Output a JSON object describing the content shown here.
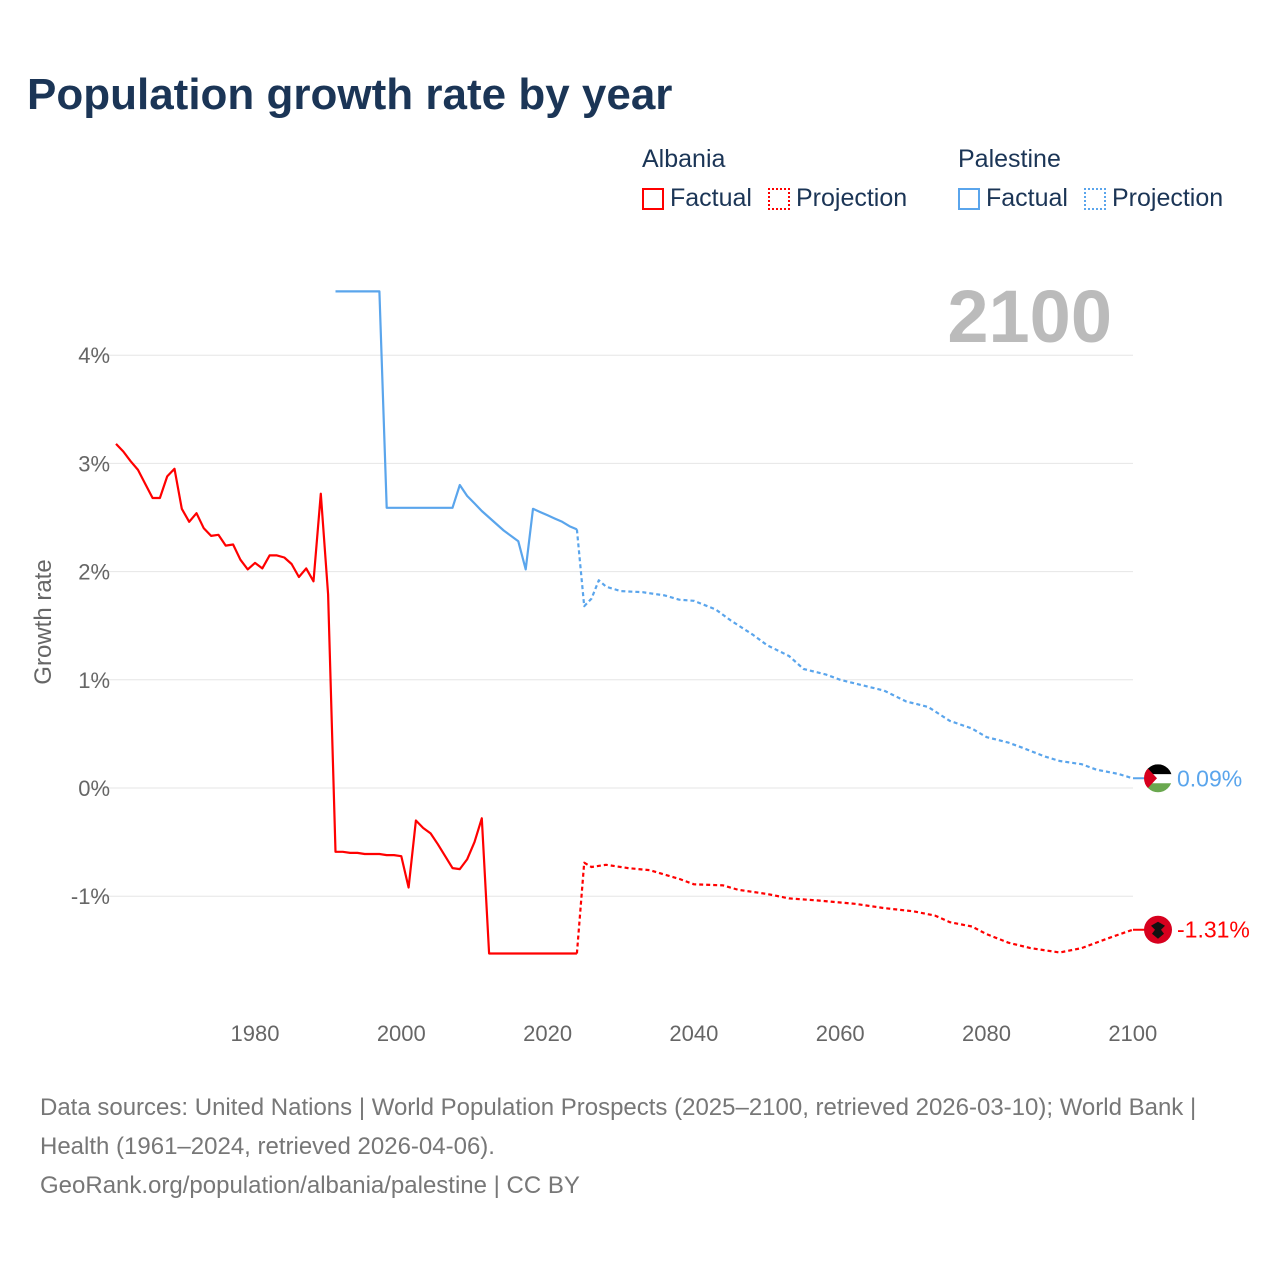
{
  "title": "Population growth rate by year",
  "legend": [
    {
      "country": "Albania",
      "factual": "Factual",
      "projection": "Projection",
      "color": "#ff0000"
    },
    {
      "country": "Palestine",
      "factual": "Factual",
      "projection": "Projection",
      "color": "#5aa5ec"
    }
  ],
  "year_display": "2100",
  "footer": {
    "sources": "Data sources: United Nations | World Population Prospects (2025–2100, retrieved 2026-03-10); World Bank | Health (1961–2024, retrieved 2026-04-06).",
    "link": "GeoRank.org/population/albania/palestine | CC BY"
  },
  "chart_data": {
    "type": "line",
    "title": "Population growth rate by year",
    "xlabel": "",
    "ylabel": "Growth rate",
    "xlim": [
      1961,
      2100
    ],
    "ylim": [
      -1.9,
      4.6
    ],
    "x_ticks": [
      {
        "v": 1980,
        "label": "1980"
      },
      {
        "v": 2000,
        "label": "2000"
      },
      {
        "v": 2020,
        "label": "2020"
      },
      {
        "v": 2040,
        "label": "2040"
      },
      {
        "v": 2060,
        "label": "2060"
      },
      {
        "v": 2080,
        "label": "2080"
      },
      {
        "v": 2100,
        "label": "2100"
      }
    ],
    "y_ticks": [
      {
        "v": -1,
        "label": "-1%"
      },
      {
        "v": 0,
        "label": "0%"
      },
      {
        "v": 1,
        "label": "1%"
      },
      {
        "v": 2,
        "label": "2%"
      },
      {
        "v": 3,
        "label": "3%"
      },
      {
        "v": 4,
        "label": "4%"
      }
    ],
    "grid": true,
    "legend_position": "top-right",
    "series": [
      {
        "name": "Albania Factual",
        "color": "#ff0000",
        "dashed": false,
        "points": [
          [
            1961,
            3.18
          ],
          [
            1962,
            3.11
          ],
          [
            1963,
            3.02
          ],
          [
            1964,
            2.94
          ],
          [
            1965,
            2.81
          ],
          [
            1966,
            2.68
          ],
          [
            1967,
            2.68
          ],
          [
            1968,
            2.88
          ],
          [
            1969,
            2.95
          ],
          [
            1970,
            2.58
          ],
          [
            1971,
            2.46
          ],
          [
            1972,
            2.54
          ],
          [
            1973,
            2.4
          ],
          [
            1974,
            2.33
          ],
          [
            1975,
            2.34
          ],
          [
            1976,
            2.24
          ],
          [
            1977,
            2.25
          ],
          [
            1978,
            2.11
          ],
          [
            1979,
            2.02
          ],
          [
            1980,
            2.08
          ],
          [
            1981,
            2.03
          ],
          [
            1982,
            2.15
          ],
          [
            1983,
            2.15
          ],
          [
            1984,
            2.13
          ],
          [
            1985,
            2.07
          ],
          [
            1986,
            1.95
          ],
          [
            1987,
            2.03
          ],
          [
            1988,
            1.91
          ],
          [
            1989,
            2.72
          ],
          [
            1990,
            1.79
          ],
          [
            1991,
            -0.59
          ],
          [
            1992,
            -0.59
          ],
          [
            1993,
            -0.6
          ],
          [
            1994,
            -0.6
          ],
          [
            1995,
            -0.61
          ],
          [
            1996,
            -0.61
          ],
          [
            1997,
            -0.61
          ],
          [
            1998,
            -0.62
          ],
          [
            1999,
            -0.62
          ],
          [
            2000,
            -0.63
          ],
          [
            2001,
            -0.92
          ],
          [
            2002,
            -0.3
          ],
          [
            2003,
            -0.37
          ],
          [
            2004,
            -0.42
          ],
          [
            2005,
            -0.52
          ],
          [
            2006,
            -0.63
          ],
          [
            2007,
            -0.74
          ],
          [
            2008,
            -0.75
          ],
          [
            2009,
            -0.66
          ],
          [
            2010,
            -0.5
          ],
          [
            2011,
            -0.28
          ],
          [
            2012,
            -1.53
          ],
          [
            2024,
            -1.53
          ]
        ]
      },
      {
        "name": "Albania Projection",
        "color": "#ff0000",
        "dashed": true,
        "points": [
          [
            2024,
            -1.53
          ],
          [
            2025,
            -0.69
          ],
          [
            2026,
            -0.73
          ],
          [
            2028,
            -0.71
          ],
          [
            2031,
            -0.74
          ],
          [
            2034,
            -0.76
          ],
          [
            2036,
            -0.8
          ],
          [
            2038,
            -0.84
          ],
          [
            2040,
            -0.89
          ],
          [
            2044,
            -0.9
          ],
          [
            2046,
            -0.94
          ],
          [
            2050,
            -0.98
          ],
          [
            2053,
            -1.02
          ],
          [
            2057,
            -1.04
          ],
          [
            2062,
            -1.07
          ],
          [
            2066,
            -1.11
          ],
          [
            2070,
            -1.14
          ],
          [
            2073,
            -1.18
          ],
          [
            2075,
            -1.24
          ],
          [
            2078,
            -1.28
          ],
          [
            2080,
            -1.35
          ],
          [
            2083,
            -1.43
          ],
          [
            2086,
            -1.48
          ],
          [
            2090,
            -1.52
          ],
          [
            2093,
            -1.48
          ],
          [
            2097,
            -1.38
          ],
          [
            2100,
            -1.31
          ]
        ]
      },
      {
        "name": "Palestine Factual",
        "color": "#5aa5ec",
        "dashed": false,
        "points": [
          [
            1991,
            4.59
          ],
          [
            1997,
            4.59
          ],
          [
            1998,
            2.59
          ],
          [
            2007,
            2.59
          ],
          [
            2008,
            2.8
          ],
          [
            2009,
            2.7
          ],
          [
            2010,
            2.63
          ],
          [
            2011,
            2.56
          ],
          [
            2012,
            2.5
          ],
          [
            2013,
            2.44
          ],
          [
            2014,
            2.38
          ],
          [
            2015,
            2.33
          ],
          [
            2016,
            2.28
          ],
          [
            2017,
            2.02
          ],
          [
            2018,
            2.58
          ],
          [
            2019,
            2.55
          ],
          [
            2020,
            2.52
          ],
          [
            2021,
            2.49
          ],
          [
            2022,
            2.46
          ],
          [
            2023,
            2.42
          ],
          [
            2024,
            2.39
          ]
        ]
      },
      {
        "name": "Palestine Projection",
        "color": "#5aa5ec",
        "dashed": true,
        "points": [
          [
            2024,
            2.39
          ],
          [
            2025,
            1.68
          ],
          [
            2026,
            1.75
          ],
          [
            2027,
            1.92
          ],
          [
            2028,
            1.86
          ],
          [
            2030,
            1.82
          ],
          [
            2033,
            1.81
          ],
          [
            2036,
            1.78
          ],
          [
            2038,
            1.74
          ],
          [
            2040,
            1.73
          ],
          [
            2043,
            1.65
          ],
          [
            2045,
            1.55
          ],
          [
            2048,
            1.42
          ],
          [
            2050,
            1.32
          ],
          [
            2053,
            1.22
          ],
          [
            2055,
            1.1
          ],
          [
            2058,
            1.05
          ],
          [
            2060,
            1.0
          ],
          [
            2063,
            0.95
          ],
          [
            2066,
            0.9
          ],
          [
            2069,
            0.8
          ],
          [
            2072,
            0.75
          ],
          [
            2075,
            0.62
          ],
          [
            2078,
            0.55
          ],
          [
            2080,
            0.47
          ],
          [
            2083,
            0.42
          ],
          [
            2085,
            0.37
          ],
          [
            2088,
            0.29
          ],
          [
            2090,
            0.25
          ],
          [
            2093,
            0.22
          ],
          [
            2095,
            0.17
          ],
          [
            2098,
            0.13
          ],
          [
            2100,
            0.09
          ]
        ]
      }
    ],
    "end_labels": [
      {
        "country": "Palestine",
        "value": 0.09,
        "label": "0.09%",
        "color": "#5aa5ec"
      },
      {
        "country": "Albania",
        "value": -1.31,
        "label": "-1.31%",
        "color": "#ff0000"
      }
    ]
  }
}
